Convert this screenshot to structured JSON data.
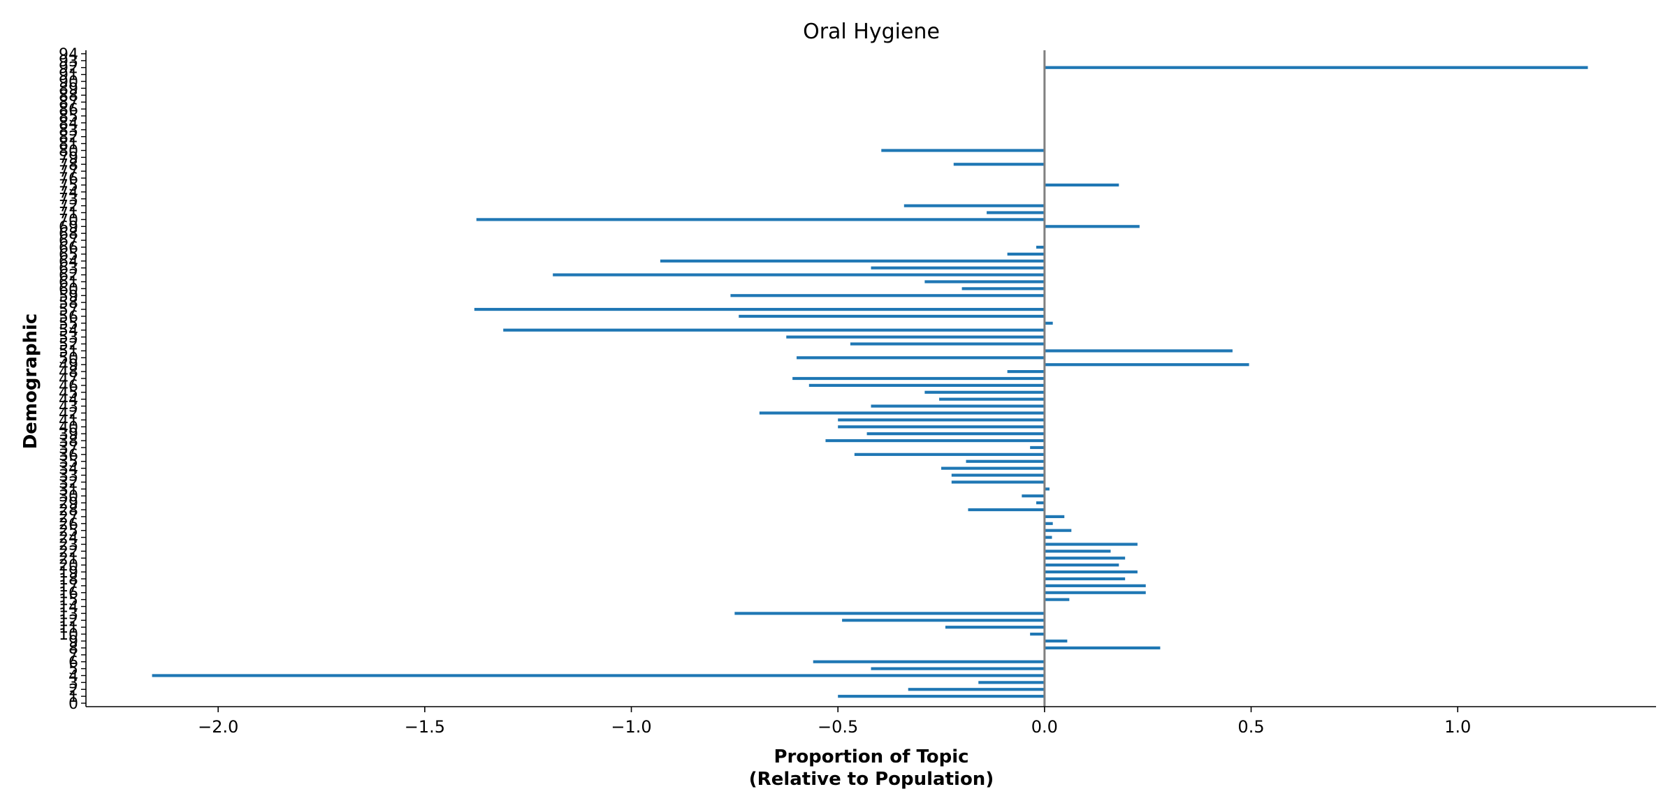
{
  "chart_data": {
    "type": "bar",
    "orientation": "horizontal",
    "title": "Oral Hygiene",
    "xlabel_line1": "Proportion of Topic",
    "xlabel_line2": "(Relative to Population)",
    "ylabel": "Demographic",
    "xlim": [
      -2.32,
      1.48
    ],
    "ylim": [
      -0.5,
      94.5
    ],
    "xticks": [
      -2.0,
      -1.5,
      -1.0,
      -0.5,
      0.0,
      0.5,
      1.0
    ],
    "xtick_labels": [
      "−2.0",
      "−1.5",
      "−1.0",
      "−0.5",
      "0.0",
      "0.5",
      "1.0"
    ],
    "bar_color": "#1f77b4",
    "zero_line_color": "#808080",
    "grid": false,
    "categories": [
      "0",
      "1",
      "2",
      "3",
      "4",
      "5",
      "6",
      "7",
      "8",
      "9",
      "10",
      "11",
      "12",
      "13",
      "14",
      "15",
      "16",
      "17",
      "18",
      "19",
      "20",
      "21",
      "22",
      "23",
      "24",
      "25",
      "26",
      "27",
      "28",
      "29",
      "30",
      "31",
      "32",
      "33",
      "34",
      "35",
      "36",
      "37",
      "38",
      "39",
      "40",
      "41",
      "42",
      "43",
      "44",
      "45",
      "46",
      "47",
      "48",
      "49",
      "50",
      "51",
      "52",
      "53",
      "54",
      "55",
      "56",
      "57",
      "58",
      "59",
      "60",
      "61",
      "62",
      "63",
      "64",
      "65",
      "66",
      "67",
      "68",
      "69",
      "70",
      "71",
      "72",
      "73",
      "74",
      "75",
      "76",
      "77",
      "78",
      "79",
      "80",
      "81",
      "82",
      "83",
      "84",
      "85",
      "86",
      "87",
      "88",
      "89",
      "90",
      "91",
      "92",
      "93",
      "94"
    ],
    "values": [
      0,
      -0.5,
      -0.33,
      -0.16,
      -2.16,
      -0.42,
      -0.56,
      0,
      0.28,
      0.055,
      -0.035,
      -0.24,
      -0.49,
      -0.75,
      0,
      0.06,
      0.245,
      0.245,
      0.195,
      0.225,
      0.18,
      0.195,
      0.16,
      0.225,
      0.018,
      0.065,
      0.02,
      0.048,
      -0.185,
      -0.02,
      -0.055,
      0.012,
      -0.225,
      -0.225,
      -0.25,
      -0.19,
      -0.46,
      -0.035,
      -0.53,
      -0.43,
      -0.5,
      -0.5,
      -0.69,
      -0.42,
      -0.255,
      -0.29,
      -0.57,
      -0.61,
      -0.09,
      0.495,
      -0.6,
      0.455,
      -0.47,
      -0.625,
      -1.31,
      0.02,
      -0.74,
      -1.38,
      0,
      -0.76,
      -0.2,
      -0.29,
      -1.19,
      -0.42,
      -0.93,
      -0.09,
      -0.02,
      0,
      0,
      0.23,
      -1.375,
      -0.14,
      -0.34,
      0,
      0,
      0.18,
      0,
      0,
      -0.22,
      0,
      -0.395,
      0,
      0,
      0,
      0,
      0,
      0,
      0,
      0,
      0,
      0,
      0,
      1.315,
      0,
      0
    ]
  }
}
